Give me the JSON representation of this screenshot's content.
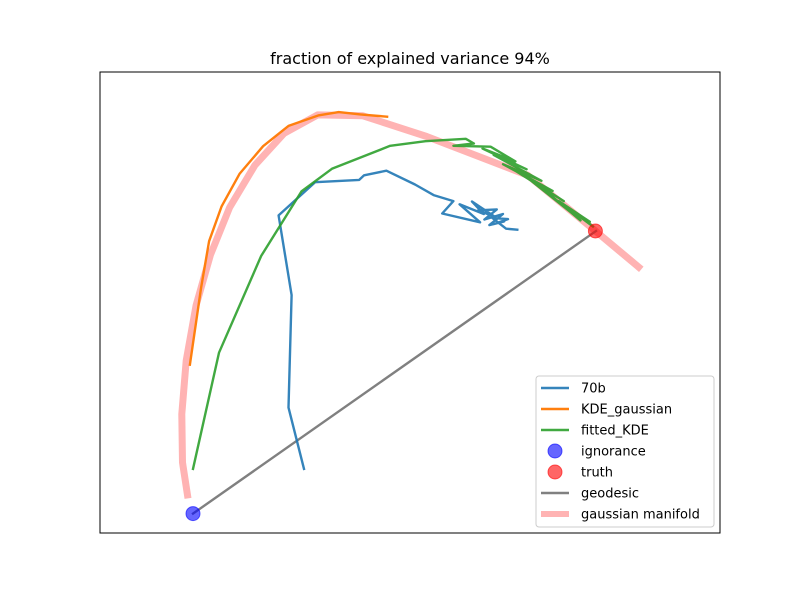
{
  "chart_data": {
    "type": "line",
    "title": "fraction of explained variance 94%",
    "xlabel": "",
    "ylabel": "",
    "xlim": [
      0,
      1
    ],
    "ylim": [
      0,
      1
    ],
    "grid": false,
    "ticks": false,
    "legend_position": "lower-right",
    "series": [
      {
        "name": "70b",
        "kind": "line",
        "color": "#1f77b4",
        "opacity": 0.9,
        "width": 2.4,
        "points": [
          [
            0.329,
            0.139
          ],
          [
            0.304,
            0.272
          ],
          [
            0.309,
            0.516
          ],
          [
            0.288,
            0.689
          ],
          [
            0.347,
            0.761
          ],
          [
            0.418,
            0.766
          ],
          [
            0.426,
            0.776
          ],
          [
            0.462,
            0.786
          ],
          [
            0.508,
            0.756
          ],
          [
            0.538,
            0.733
          ],
          [
            0.57,
            0.72
          ],
          [
            0.552,
            0.693
          ],
          [
            0.613,
            0.674
          ],
          [
            0.58,
            0.713
          ],
          [
            0.619,
            0.692
          ],
          [
            0.6,
            0.719
          ],
          [
            0.638,
            0.685
          ],
          [
            0.61,
            0.7
          ],
          [
            0.64,
            0.702
          ],
          [
            0.62,
            0.68
          ],
          [
            0.65,
            0.692
          ],
          [
            0.628,
            0.668
          ],
          [
            0.652,
            0.676
          ],
          [
            0.635,
            0.67
          ],
          [
            0.658,
            0.681
          ],
          [
            0.633,
            0.683
          ],
          [
            0.655,
            0.66
          ],
          [
            0.673,
            0.658
          ]
        ]
      },
      {
        "name": "KDE_gaussian",
        "kind": "line",
        "color": "#ff7f0e",
        "opacity": 1,
        "width": 2.4,
        "points": [
          [
            0.145,
            0.365
          ],
          [
            0.163,
            0.532
          ],
          [
            0.176,
            0.633
          ],
          [
            0.196,
            0.708
          ],
          [
            0.225,
            0.779
          ],
          [
            0.263,
            0.839
          ],
          [
            0.304,
            0.883
          ],
          [
            0.353,
            0.906
          ],
          [
            0.385,
            0.913
          ],
          [
            0.42,
            0.908
          ],
          [
            0.463,
            0.903
          ]
        ]
      },
      {
        "name": "fitted_KDE",
        "kind": "line",
        "color": "#2ca02c",
        "opacity": 0.9,
        "width": 2.4,
        "points": [
          [
            0.15,
            0.139
          ],
          [
            0.192,
            0.391
          ],
          [
            0.26,
            0.601
          ],
          [
            0.325,
            0.741
          ],
          [
            0.374,
            0.79
          ],
          [
            0.468,
            0.84
          ],
          [
            0.525,
            0.85
          ],
          [
            0.59,
            0.855
          ],
          [
            0.603,
            0.845
          ],
          [
            0.57,
            0.84
          ],
          [
            0.63,
            0.838
          ],
          [
            0.67,
            0.806
          ],
          [
            0.617,
            0.834
          ],
          [
            0.688,
            0.789
          ],
          [
            0.635,
            0.82
          ],
          [
            0.712,
            0.764
          ],
          [
            0.65,
            0.8
          ],
          [
            0.73,
            0.742
          ],
          [
            0.665,
            0.79
          ],
          [
            0.748,
            0.72
          ],
          [
            0.69,
            0.77
          ],
          [
            0.76,
            0.695
          ],
          [
            0.71,
            0.752
          ],
          [
            0.775,
            0.678
          ],
          [
            0.74,
            0.72
          ],
          [
            0.79,
            0.675
          ],
          [
            0.76,
            0.7
          ],
          [
            0.795,
            0.665
          ]
        ]
      },
      {
        "name": "ignorance",
        "kind": "point",
        "color": "#0000ff",
        "opacity": 0.6,
        "points": [
          [
            0.15,
            0.042
          ]
        ]
      },
      {
        "name": "truth",
        "kind": "point",
        "color": "#ff0000",
        "opacity": 0.6,
        "points": [
          [
            0.799,
            0.655
          ]
        ]
      },
      {
        "name": "geodesic",
        "kind": "line",
        "color": "#808080",
        "opacity": 1,
        "width": 2.4,
        "points": [
          [
            0.15,
            0.042
          ],
          [
            0.8,
            0.655
          ]
        ]
      },
      {
        "name": "gaussian manifold",
        "kind": "line",
        "color": "#ffb3b3",
        "opacity": 1,
        "width": 7,
        "points": [
          [
            0.142,
            0.075
          ],
          [
            0.133,
            0.153
          ],
          [
            0.132,
            0.258
          ],
          [
            0.139,
            0.374
          ],
          [
            0.155,
            0.494
          ],
          [
            0.178,
            0.603
          ],
          [
            0.209,
            0.706
          ],
          [
            0.25,
            0.798
          ],
          [
            0.297,
            0.867
          ],
          [
            0.351,
            0.907
          ],
          [
            0.424,
            0.905
          ],
          [
            0.527,
            0.86
          ],
          [
            0.69,
            0.776
          ],
          [
            0.802,
            0.652
          ],
          [
            0.873,
            0.572
          ]
        ]
      }
    ]
  }
}
